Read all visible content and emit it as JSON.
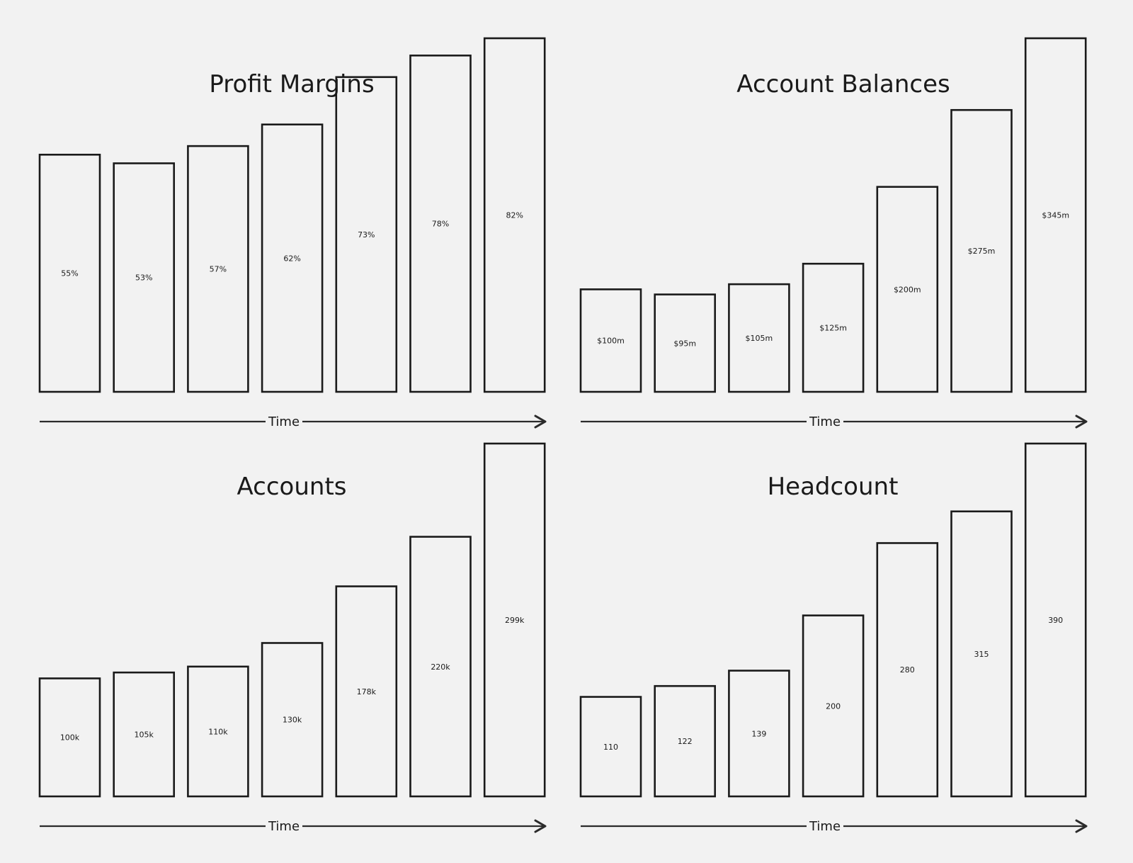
{
  "chart_data": [
    {
      "type": "bar",
      "title": "Profit Margins",
      "xlabel": "Time",
      "ylabel": "",
      "categories": [
        "",
        "",
        "",
        "",
        "",
        "",
        ""
      ],
      "values": [
        55,
        53,
        57,
        62,
        73,
        78,
        82
      ],
      "labels": [
        "55%",
        "53%",
        "57%",
        "62%",
        "73%",
        "78%",
        "82%"
      ],
      "grid": false,
      "legend": "none"
    },
    {
      "type": "bar",
      "title": "Account Balances",
      "xlabel": "Time",
      "ylabel": "",
      "categories": [
        "",
        "",
        "",
        "",
        "",
        "",
        ""
      ],
      "values": [
        100,
        95,
        105,
        125,
        200,
        275,
        345
      ],
      "labels": [
        "$100m",
        "$95m",
        "$105m",
        "$125m",
        "$200m",
        "$275m",
        "$345m"
      ],
      "grid": false,
      "legend": "none"
    },
    {
      "type": "bar",
      "title": "Accounts",
      "xlabel": "Time",
      "ylabel": "",
      "categories": [
        "",
        "",
        "",
        "",
        "",
        "",
        ""
      ],
      "values": [
        100,
        105,
        110,
        130,
        178,
        220,
        299
      ],
      "labels": [
        "100k",
        "105k",
        "110k",
        "130k",
        "178k",
        "220k",
        "299k"
      ],
      "grid": false,
      "legend": "none"
    },
    {
      "type": "bar",
      "title": "Headcount",
      "xlabel": "Time",
      "ylabel": "",
      "categories": [
        "",
        "",
        "",
        "",
        "",
        "",
        ""
      ],
      "values": [
        110,
        122,
        139,
        200,
        280,
        315,
        390
      ],
      "labels": [
        "110",
        "122",
        "139",
        "200",
        "280",
        "315",
        "390"
      ],
      "grid": false,
      "legend": "none"
    }
  ],
  "colors": {
    "background": "#f2f2f2",
    "ink": "#1a1a1a"
  }
}
